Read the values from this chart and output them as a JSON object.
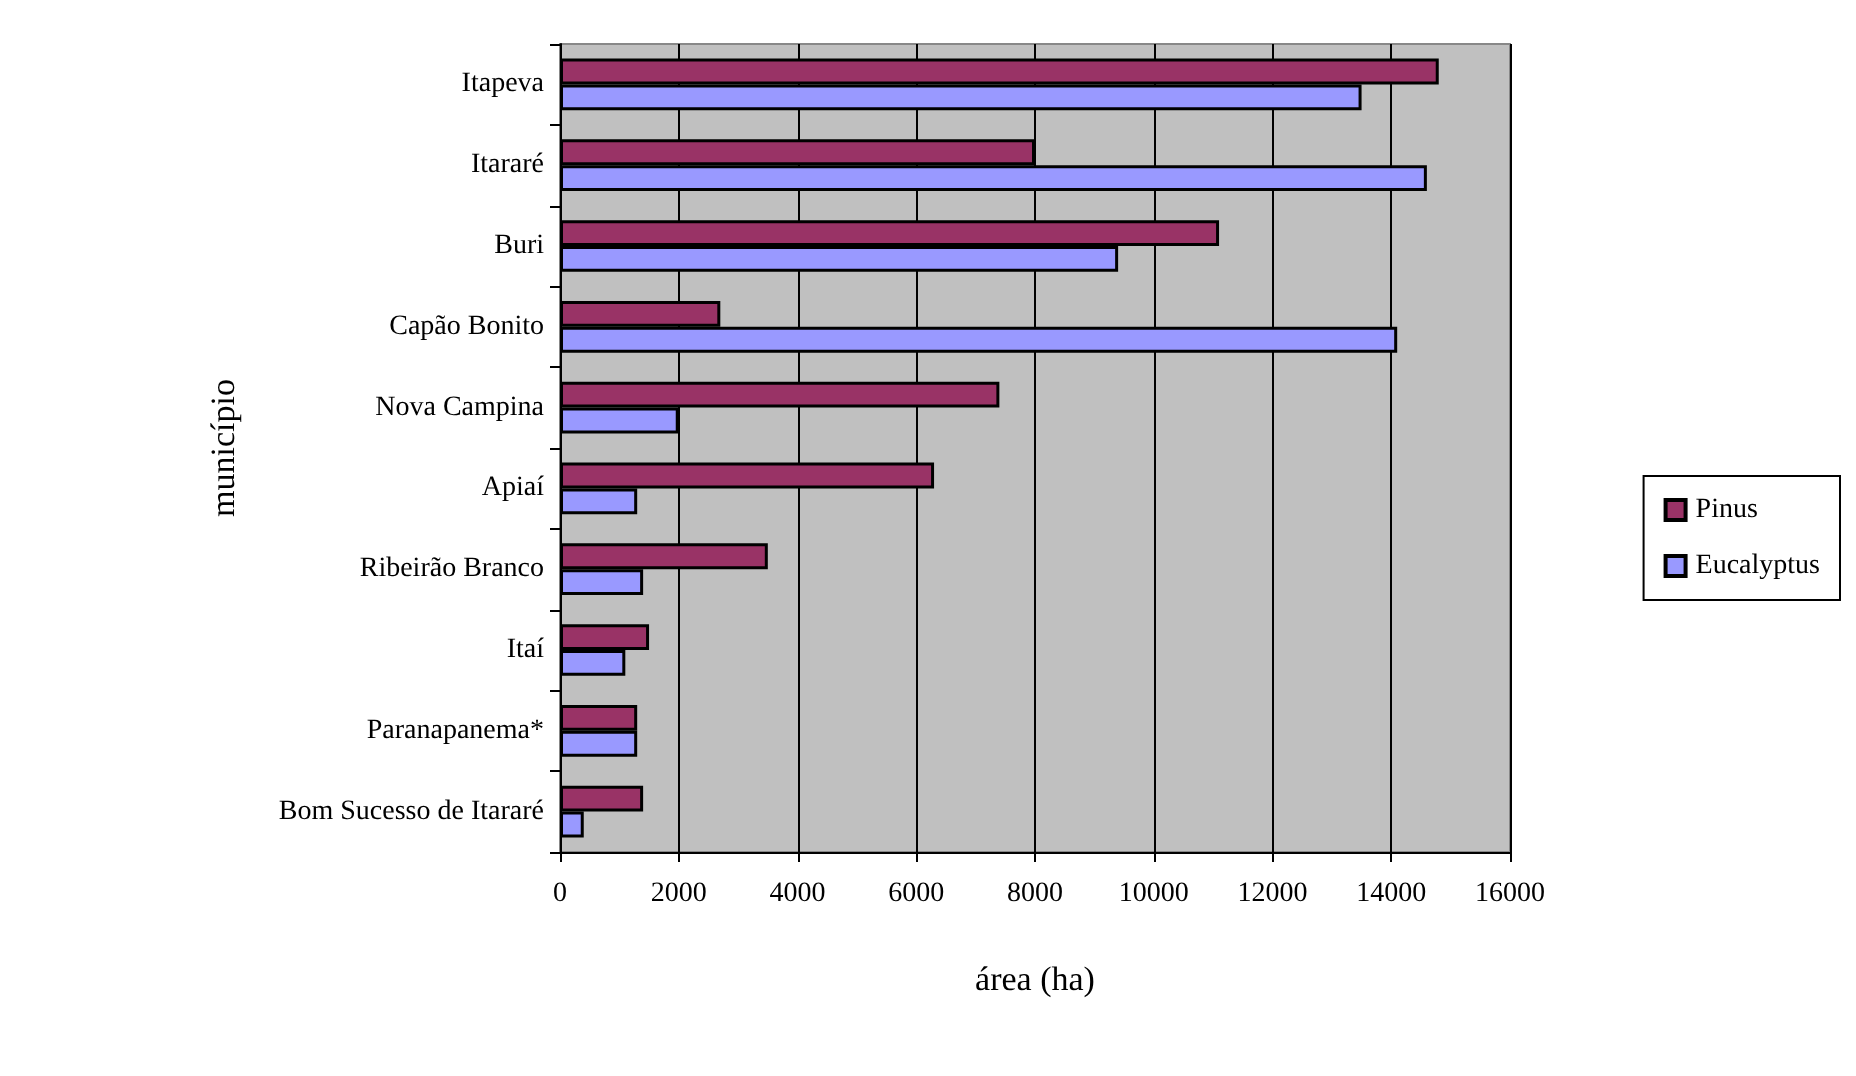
{
  "chart_data": {
    "type": "bar",
    "orientation": "horizontal",
    "xlabel": "área (ha)",
    "ylabel": "município",
    "categories": [
      "Itapeva",
      "Itararé",
      "Buri",
      "Capão Bonito",
      "Nova Campina",
      "Apiaí",
      "Ribeirão Branco",
      "Itaí",
      "Paranapanema*",
      "Bom Sucesso de Itararé"
    ],
    "series": [
      {
        "name": "Pinus",
        "color": "#993366",
        "values": [
          14800,
          8000,
          11100,
          2700,
          7400,
          6300,
          3500,
          1500,
          1300,
          1400
        ]
      },
      {
        "name": "Eucalyptus",
        "color": "#9999ff",
        "values": [
          13500,
          14600,
          9400,
          14100,
          2000,
          1300,
          1400,
          1100,
          1300,
          400
        ]
      }
    ],
    "xlim": [
      0,
      16000
    ],
    "xticks": [
      0,
      2000,
      4000,
      6000,
      8000,
      10000,
      12000,
      14000,
      16000
    ],
    "grid": "x",
    "legend": "right"
  }
}
